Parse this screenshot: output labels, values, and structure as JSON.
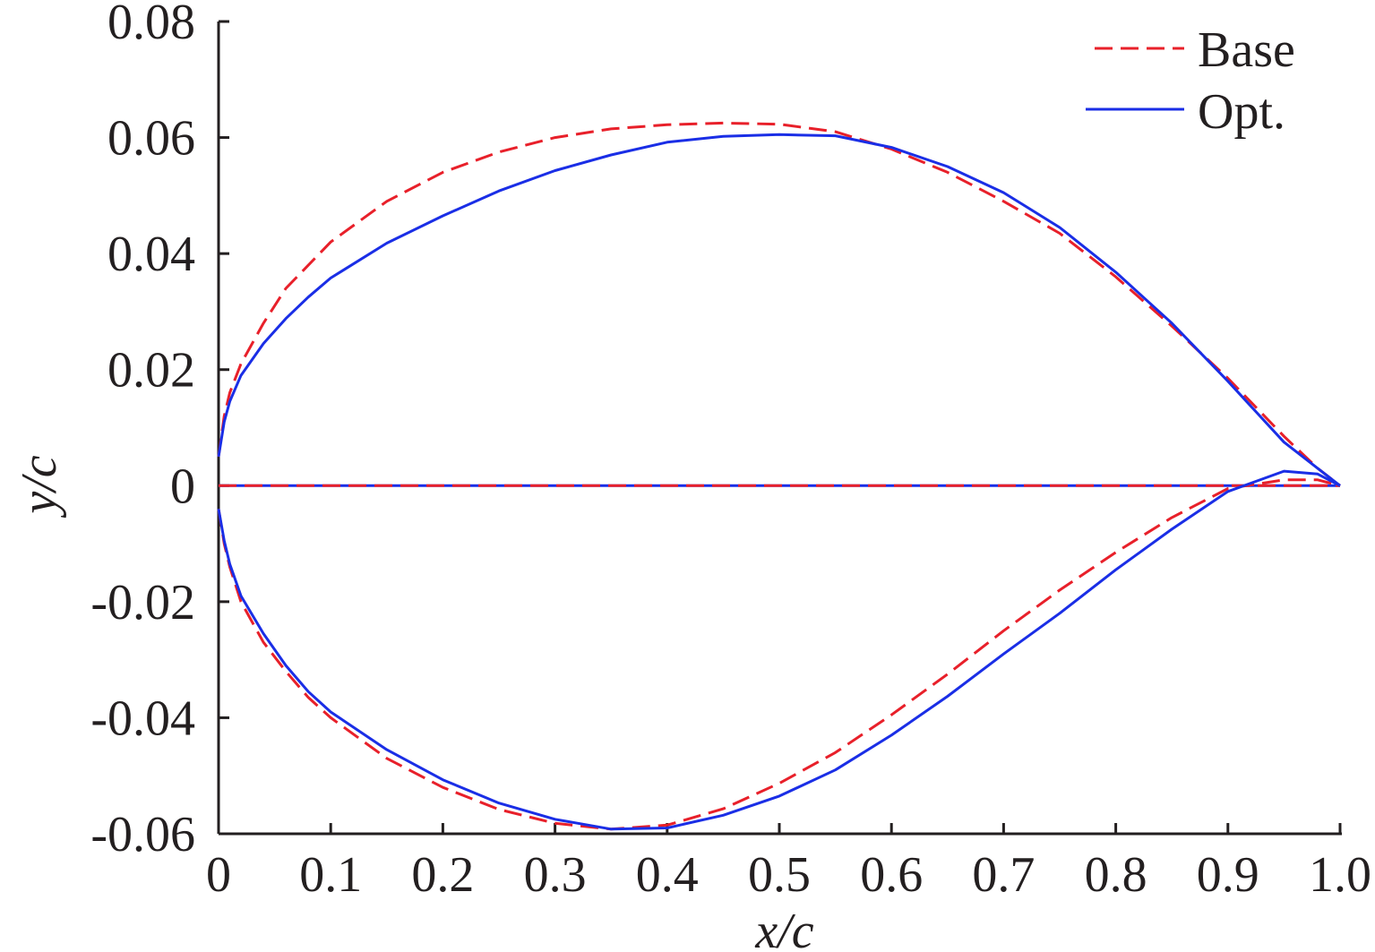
{
  "chart_data": {
    "type": "line",
    "title": "",
    "xlabel": "x/c",
    "ylabel": "y/c",
    "xlim": [
      0,
      1.0
    ],
    "ylim": [
      -0.06,
      0.08
    ],
    "x_ticks": [
      0,
      0.1,
      0.2,
      0.3,
      0.4,
      0.5,
      0.6,
      0.7,
      0.8,
      0.9,
      1.0
    ],
    "x_tick_labels": [
      "0",
      "0.1",
      "0.2",
      "0.3",
      "0.4",
      "0.5",
      "0.6",
      "0.7",
      "0.8",
      "0.9",
      "1.0"
    ],
    "y_ticks": [
      -0.06,
      -0.04,
      -0.02,
      0,
      0.02,
      0.04,
      0.06,
      0.08
    ],
    "y_tick_labels": [
      "-0.06",
      "-0.04",
      "-0.02",
      "0",
      "0.02",
      "0.04",
      "0.06",
      "0.08"
    ],
    "grid": false,
    "legend_position": "top-right",
    "series": [
      {
        "name": "Base",
        "color": "#e8202a",
        "style": "dashed",
        "upper": [
          [
            0,
            0.005
          ],
          [
            0.005,
            0.012
          ],
          [
            0.01,
            0.016
          ],
          [
            0.02,
            0.021
          ],
          [
            0.04,
            0.028
          ],
          [
            0.06,
            0.034
          ],
          [
            0.08,
            0.038
          ],
          [
            0.1,
            0.042
          ],
          [
            0.15,
            0.049
          ],
          [
            0.2,
            0.054
          ],
          [
            0.25,
            0.0575
          ],
          [
            0.3,
            0.06
          ],
          [
            0.35,
            0.0615
          ],
          [
            0.4,
            0.0622
          ],
          [
            0.45,
            0.0625
          ],
          [
            0.5,
            0.0623
          ],
          [
            0.55,
            0.061
          ],
          [
            0.6,
            0.058
          ],
          [
            0.65,
            0.054
          ],
          [
            0.7,
            0.049
          ],
          [
            0.75,
            0.0435
          ],
          [
            0.8,
            0.036
          ],
          [
            0.85,
            0.0275
          ],
          [
            0.9,
            0.0185
          ],
          [
            0.95,
            0.0085
          ],
          [
            0.98,
            0.003
          ],
          [
            1.0,
            0
          ]
        ],
        "lower": [
          [
            0,
            -0.004
          ],
          [
            0.005,
            -0.01
          ],
          [
            0.01,
            -0.014
          ],
          [
            0.02,
            -0.02
          ],
          [
            0.04,
            -0.027
          ],
          [
            0.06,
            -0.032
          ],
          [
            0.08,
            -0.0365
          ],
          [
            0.1,
            -0.04
          ],
          [
            0.15,
            -0.047
          ],
          [
            0.2,
            -0.052
          ],
          [
            0.25,
            -0.0558
          ],
          [
            0.3,
            -0.0582
          ],
          [
            0.35,
            -0.0592
          ],
          [
            0.4,
            -0.0585
          ],
          [
            0.45,
            -0.0557
          ],
          [
            0.5,
            -0.0513
          ],
          [
            0.55,
            -0.046
          ],
          [
            0.6,
            -0.0395
          ],
          [
            0.65,
            -0.0325
          ],
          [
            0.7,
            -0.025
          ],
          [
            0.75,
            -0.018
          ],
          [
            0.8,
            -0.0115
          ],
          [
            0.85,
            -0.0055
          ],
          [
            0.9,
            -0.0005
          ],
          [
            0.95,
            0.001
          ],
          [
            0.98,
            0.001
          ],
          [
            1.0,
            0
          ]
        ]
      },
      {
        "name": "Opt.",
        "color": "#1a2ee6",
        "style": "solid",
        "upper": [
          [
            0,
            0.005
          ],
          [
            0.005,
            0.011
          ],
          [
            0.01,
            0.0145
          ],
          [
            0.02,
            0.019
          ],
          [
            0.04,
            0.0245
          ],
          [
            0.06,
            0.0288
          ],
          [
            0.08,
            0.0325
          ],
          [
            0.1,
            0.0358
          ],
          [
            0.15,
            0.0418
          ],
          [
            0.2,
            0.0465
          ],
          [
            0.25,
            0.0508
          ],
          [
            0.3,
            0.0543
          ],
          [
            0.35,
            0.057
          ],
          [
            0.4,
            0.0592
          ],
          [
            0.45,
            0.0602
          ],
          [
            0.5,
            0.0605
          ],
          [
            0.55,
            0.0603
          ],
          [
            0.6,
            0.0583
          ],
          [
            0.65,
            0.055
          ],
          [
            0.7,
            0.0505
          ],
          [
            0.75,
            0.0445
          ],
          [
            0.8,
            0.0368
          ],
          [
            0.85,
            0.028
          ],
          [
            0.9,
            0.018
          ],
          [
            0.95,
            0.0075
          ],
          [
            0.98,
            0.003
          ],
          [
            1.0,
            0
          ]
        ],
        "lower": [
          [
            0,
            -0.004
          ],
          [
            0.005,
            -0.0095
          ],
          [
            0.01,
            -0.0135
          ],
          [
            0.02,
            -0.019
          ],
          [
            0.04,
            -0.0255
          ],
          [
            0.06,
            -0.031
          ],
          [
            0.08,
            -0.0355
          ],
          [
            0.1,
            -0.039
          ],
          [
            0.15,
            -0.0455
          ],
          [
            0.2,
            -0.0507
          ],
          [
            0.25,
            -0.0547
          ],
          [
            0.3,
            -0.0575
          ],
          [
            0.35,
            -0.0592
          ],
          [
            0.4,
            -0.059
          ],
          [
            0.45,
            -0.0568
          ],
          [
            0.5,
            -0.0535
          ],
          [
            0.55,
            -0.049
          ],
          [
            0.6,
            -0.043
          ],
          [
            0.65,
            -0.0363
          ],
          [
            0.7,
            -0.029
          ],
          [
            0.75,
            -0.022
          ],
          [
            0.8,
            -0.0145
          ],
          [
            0.85,
            -0.0075
          ],
          [
            0.9,
            -0.001
          ],
          [
            0.95,
            0.0025
          ],
          [
            0.98,
            0.002
          ],
          [
            1.0,
            0
          ]
        ]
      }
    ]
  }
}
